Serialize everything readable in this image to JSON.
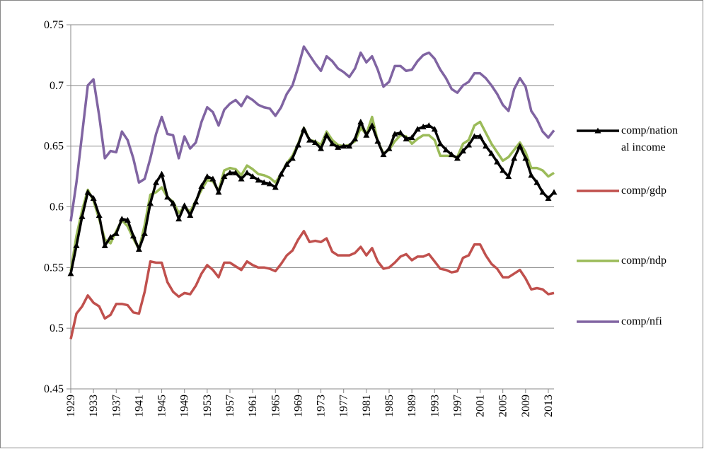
{
  "chart_data": {
    "type": "line",
    "x": [
      1929,
      1930,
      1931,
      1932,
      1933,
      1934,
      1935,
      1936,
      1937,
      1938,
      1939,
      1940,
      1941,
      1942,
      1943,
      1944,
      1945,
      1946,
      1947,
      1948,
      1949,
      1950,
      1951,
      1952,
      1953,
      1954,
      1955,
      1956,
      1957,
      1958,
      1959,
      1960,
      1961,
      1962,
      1963,
      1964,
      1965,
      1966,
      1967,
      1968,
      1969,
      1970,
      1971,
      1972,
      1973,
      1974,
      1975,
      1976,
      1977,
      1978,
      1979,
      1980,
      1981,
      1982,
      1983,
      1984,
      1985,
      1986,
      1987,
      1988,
      1989,
      1990,
      1991,
      1992,
      1993,
      1994,
      1995,
      1996,
      1997,
      1998,
      1999,
      2000,
      2001,
      2002,
      2003,
      2004,
      2005,
      2006,
      2007,
      2008,
      2009,
      2010,
      2011,
      2012,
      2013,
      2014
    ],
    "xlim": [
      1929,
      2014
    ],
    "xticks": [
      1929,
      1933,
      1937,
      1941,
      1945,
      1949,
      1953,
      1957,
      1961,
      1965,
      1969,
      1973,
      1977,
      1981,
      1985,
      1989,
      1993,
      1997,
      2001,
      2005,
      2009,
      2013
    ],
    "ylim": [
      0.45,
      0.75
    ],
    "yticks": [
      0.45,
      0.5,
      0.55,
      0.6,
      0.65,
      0.7,
      0.75
    ],
    "grid": true,
    "legend": "right",
    "series": [
      {
        "name": "comp/national income",
        "color": "#000000",
        "marker": "triangle",
        "values": [
          0.545,
          0.568,
          0.592,
          0.612,
          0.607,
          0.593,
          0.568,
          0.575,
          0.578,
          0.59,
          0.589,
          0.576,
          0.565,
          0.578,
          0.603,
          0.62,
          0.627,
          0.608,
          0.603,
          0.59,
          0.601,
          0.593,
          0.604,
          0.617,
          0.625,
          0.623,
          0.612,
          0.625,
          0.628,
          0.628,
          0.623,
          0.628,
          0.625,
          0.622,
          0.62,
          0.619,
          0.616,
          0.627,
          0.635,
          0.64,
          0.651,
          0.664,
          0.655,
          0.653,
          0.648,
          0.659,
          0.652,
          0.649,
          0.65,
          0.65,
          0.656,
          0.67,
          0.659,
          0.667,
          0.654,
          0.643,
          0.648,
          0.66,
          0.661,
          0.656,
          0.657,
          0.664,
          0.666,
          0.667,
          0.664,
          0.652,
          0.647,
          0.643,
          0.64,
          0.646,
          0.651,
          0.658,
          0.658,
          0.65,
          0.644,
          0.637,
          0.63,
          0.625,
          0.64,
          0.65,
          0.64,
          0.626,
          0.62,
          0.612,
          0.607,
          0.612
        ]
      },
      {
        "name": "comp/gdp",
        "color": "#c0504d",
        "values": [
          0.491,
          0.512,
          0.518,
          0.527,
          0.521,
          0.518,
          0.508,
          0.511,
          0.52,
          0.52,
          0.519,
          0.513,
          0.512,
          0.53,
          0.555,
          0.554,
          0.554,
          0.538,
          0.53,
          0.526,
          0.529,
          0.528,
          0.535,
          0.545,
          0.552,
          0.548,
          0.542,
          0.554,
          0.554,
          0.551,
          0.548,
          0.555,
          0.552,
          0.55,
          0.55,
          0.549,
          0.547,
          0.553,
          0.56,
          0.564,
          0.573,
          0.58,
          0.571,
          0.572,
          0.571,
          0.574,
          0.563,
          0.56,
          0.56,
          0.56,
          0.562,
          0.567,
          0.56,
          0.566,
          0.555,
          0.549,
          0.55,
          0.554,
          0.559,
          0.561,
          0.556,
          0.559,
          0.559,
          0.561,
          0.555,
          0.549,
          0.548,
          0.546,
          0.547,
          0.558,
          0.56,
          0.569,
          0.569,
          0.56,
          0.553,
          0.549,
          0.542,
          0.542,
          0.545,
          0.548,
          0.541,
          0.532,
          0.533,
          0.532,
          0.528,
          0.529
        ]
      },
      {
        "name": "comp/ndp",
        "color": "#9bbb59",
        "values": [
          0.547,
          0.576,
          0.597,
          0.614,
          0.605,
          0.59,
          0.573,
          0.57,
          0.58,
          0.589,
          0.584,
          0.574,
          0.565,
          0.585,
          0.61,
          0.612,
          0.616,
          0.608,
          0.604,
          0.595,
          0.6,
          0.596,
          0.605,
          0.614,
          0.622,
          0.621,
          0.613,
          0.63,
          0.632,
          0.631,
          0.626,
          0.634,
          0.631,
          0.627,
          0.626,
          0.624,
          0.62,
          0.627,
          0.636,
          0.642,
          0.652,
          0.665,
          0.655,
          0.654,
          0.651,
          0.662,
          0.655,
          0.651,
          0.65,
          0.651,
          0.654,
          0.665,
          0.66,
          0.674,
          0.654,
          0.644,
          0.647,
          0.654,
          0.659,
          0.658,
          0.652,
          0.656,
          0.659,
          0.659,
          0.655,
          0.642,
          0.642,
          0.642,
          0.641,
          0.652,
          0.655,
          0.667,
          0.67,
          0.661,
          0.652,
          0.645,
          0.638,
          0.641,
          0.647,
          0.653,
          0.645,
          0.632,
          0.632,
          0.63,
          0.625,
          0.628
        ]
      },
      {
        "name": "comp/nfi",
        "color": "#8064a2",
        "values": [
          0.588,
          0.62,
          0.66,
          0.7,
          0.705,
          0.675,
          0.64,
          0.646,
          0.645,
          0.662,
          0.655,
          0.64,
          0.62,
          0.623,
          0.64,
          0.66,
          0.674,
          0.66,
          0.659,
          0.64,
          0.658,
          0.648,
          0.653,
          0.67,
          0.682,
          0.678,
          0.667,
          0.68,
          0.685,
          0.688,
          0.683,
          0.691,
          0.688,
          0.684,
          0.682,
          0.681,
          0.675,
          0.682,
          0.693,
          0.7,
          0.715,
          0.732,
          0.725,
          0.718,
          0.712,
          0.724,
          0.72,
          0.714,
          0.711,
          0.707,
          0.714,
          0.727,
          0.719,
          0.724,
          0.713,
          0.699,
          0.703,
          0.716,
          0.716,
          0.712,
          0.713,
          0.72,
          0.725,
          0.727,
          0.722,
          0.713,
          0.706,
          0.697,
          0.694,
          0.7,
          0.703,
          0.71,
          0.71,
          0.706,
          0.7,
          0.693,
          0.684,
          0.679,
          0.697,
          0.706,
          0.699,
          0.679,
          0.672,
          0.662,
          0.657,
          0.663
        ]
      }
    ]
  }
}
